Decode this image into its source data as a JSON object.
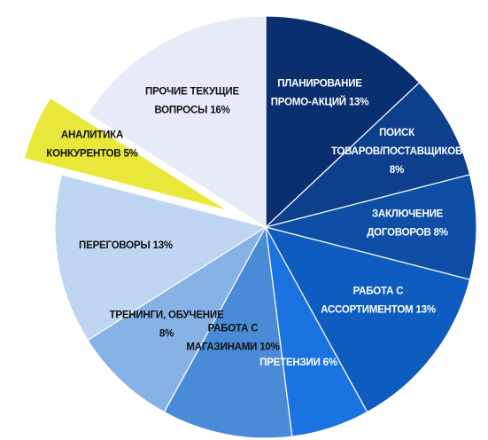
{
  "chart_data": {
    "type": "pie",
    "title": "",
    "slices": [
      {
        "lines": [
          "ПЛАНИРОВАНИЕ",
          "ПРОМО-АКЦИЙ 13%"
        ],
        "value": 13,
        "color": "#0a2f6e",
        "text_color": "#ffffff"
      },
      {
        "lines": [
          "ПОИСК",
          "ТОВАРОВ/ПОСТАВЩИКОВ",
          "8%"
        ],
        "value": 8,
        "color": "#0d3f8c",
        "text_color": "#ffffff"
      },
      {
        "lines": [
          "ЗАКЛЮЧЕНИЕ",
          "ДОГОВОРОВ 8%"
        ],
        "value": 8,
        "color": "#0e4ea6",
        "text_color": "#ffffff"
      },
      {
        "lines": [
          "РАБОТА С",
          "АССОРТИМЕНТОМ 13%"
        ],
        "value": 13,
        "color": "#0f5cc0",
        "text_color": "#ffffff"
      },
      {
        "lines": [
          "ПРЕТЕНЗИИ 6%"
        ],
        "value": 6,
        "color": "#1a73e0",
        "text_color": "#ffffff"
      },
      {
        "lines": [
          "РАБОТА С",
          "МАГАЗИНАМИ 10%"
        ],
        "value": 10,
        "color": "#4a8bd8",
        "text_color": "#111111"
      },
      {
        "lines": [
          "ТРЕНИНГИ, ОБУЧЕНИЕ",
          "8%"
        ],
        "value": 8,
        "color": "#86b2e6",
        "text_color": "#111111"
      },
      {
        "lines": [
          "ПЕРЕГОВОРЫ 13%"
        ],
        "value": 13,
        "color": "#bfd6f2",
        "text_color": "#111111"
      },
      {
        "lines": [
          "АНАЛИТИКА",
          "КОНКУРЕНТОВ 5%"
        ],
        "value": 5,
        "color": "#e9e83a",
        "text_color": "#111111",
        "exploded": true
      },
      {
        "lines": [
          "ПРОЧИЕ ТЕКУЩИЕ",
          "ВОПРОСЫ 16%"
        ],
        "value": 16,
        "color": "#e7ebf8",
        "text_color": "#111111"
      }
    ]
  }
}
